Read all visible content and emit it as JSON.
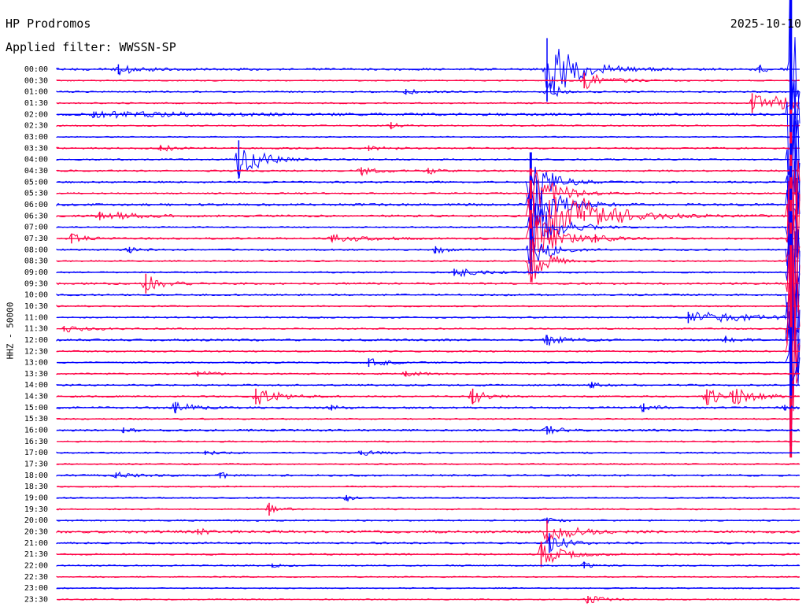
{
  "header": {
    "station": "HP Prodromos",
    "filter": "Applied filter: WWSSN-SP",
    "date": "2025-10-10",
    "channel": "HHZ - 50000"
  },
  "chart_data": {
    "type": "line",
    "subtype": "helicorder",
    "title": "HP Prodromos",
    "subtitle": "Applied filter: WWSSN-SP",
    "date": "2025-10-10",
    "ylabel": "HHZ - 50000",
    "grid": false,
    "colors": [
      "#0000ff",
      "#ff0044"
    ],
    "rows": [
      "00:00",
      "00:30",
      "01:00",
      "01:30",
      "02:00",
      "02:30",
      "03:00",
      "03:30",
      "04:00",
      "04:30",
      "05:00",
      "05:30",
      "06:00",
      "06:30",
      "07:00",
      "07:30",
      "08:00",
      "08:30",
      "09:00",
      "09:30",
      "10:00",
      "10:30",
      "11:00",
      "11:30",
      "12:00",
      "12:30",
      "13:00",
      "13:30",
      "14:00",
      "14:30",
      "15:00",
      "15:30",
      "16:00",
      "16:30",
      "17:00",
      "17:30",
      "18:00",
      "18:30",
      "19:00",
      "19:30",
      "20:00",
      "20:30",
      "21:00",
      "21:30",
      "22:00",
      "22:30",
      "23:00",
      "23:30"
    ],
    "noise": [
      1.4,
      0.8,
      1.0,
      0.9,
      1.6,
      0.9,
      0.7,
      1.1,
      1.0,
      1.1,
      1.2,
      1.0,
      1.5,
      1.3,
      0.9,
      1.2,
      1.1,
      0.9,
      1.0,
      1.2,
      1.1,
      0.9,
      1.0,
      0.9,
      1.3,
      1.0,
      1.0,
      0.9,
      1.1,
      1.0,
      1.2,
      0.9,
      1.3,
      0.9,
      1.0,
      0.9,
      1.2,
      0.9,
      0.9,
      0.9,
      1.0,
      1.6,
      1.1,
      1.0,
      0.9,
      0.8,
      0.8,
      0.8
    ],
    "events": [
      {
        "row": 0,
        "x": 0.083,
        "amp": 7,
        "dur": 0.03
      },
      {
        "row": 0,
        "x": 0.66,
        "amp": 44,
        "dur": 0.035
      },
      {
        "row": 0,
        "x": 0.946,
        "amp": 5,
        "dur": 0.008
      },
      {
        "row": 0,
        "x": 0.988,
        "amp": 160,
        "dur": 0.012,
        "fill": true
      },
      {
        "row": 1,
        "x": 0.71,
        "amp": 11,
        "dur": 0.03
      },
      {
        "row": 2,
        "x": 0.47,
        "amp": 4,
        "dur": 0.015
      },
      {
        "row": 2,
        "x": 0.66,
        "amp": 14,
        "dur": 0.015
      },
      {
        "row": 3,
        "x": 0.936,
        "amp": 14,
        "dur": 0.09
      },
      {
        "row": 4,
        "x": 0.05,
        "amp": 4,
        "dur": 0.12
      },
      {
        "row": 4,
        "x": 0.988,
        "amp": 165,
        "dur": 0.012,
        "fill": true
      },
      {
        "row": 5,
        "x": 0.45,
        "amp": 5,
        "dur": 0.01
      },
      {
        "row": 7,
        "x": 0.14,
        "amp": 4,
        "dur": 0.02
      },
      {
        "row": 7,
        "x": 0.42,
        "amp": 4,
        "dur": 0.02
      },
      {
        "row": 8,
        "x": 0.245,
        "amp": 27,
        "dur": 0.025
      },
      {
        "row": 8,
        "x": 0.988,
        "amp": 150,
        "dur": 0.014,
        "fill": true
      },
      {
        "row": 9,
        "x": 0.41,
        "amp": 5,
        "dur": 0.02
      },
      {
        "row": 9,
        "x": 0.5,
        "amp": 4,
        "dur": 0.015
      },
      {
        "row": 10,
        "x": 0.638,
        "amp": 42,
        "dur": 0.022,
        "fill": true
      },
      {
        "row": 10,
        "x": 0.988,
        "amp": 140,
        "dur": 0.025,
        "fill": true
      },
      {
        "row": 11,
        "x": 0.638,
        "amp": 35,
        "dur": 0.03,
        "fill": true
      },
      {
        "row": 12,
        "x": 0.638,
        "amp": 40,
        "dur": 0.03,
        "fill": true
      },
      {
        "row": 12,
        "x": 0.988,
        "amp": 160,
        "dur": 0.03,
        "fill": true
      },
      {
        "row": 13,
        "x": 0.058,
        "amp": 6,
        "dur": 0.04
      },
      {
        "row": 13,
        "x": 0.638,
        "amp": 50,
        "dur": 0.06,
        "fill": true
      },
      {
        "row": 13,
        "x": 0.71,
        "amp": 7,
        "dur": 0.025
      },
      {
        "row": 13,
        "x": 0.988,
        "amp": 150,
        "dur": 0.018,
        "fill": true
      },
      {
        "row": 14,
        "x": 0.638,
        "amp": 40,
        "dur": 0.03,
        "fill": true
      },
      {
        "row": 14,
        "x": 0.988,
        "amp": 160,
        "dur": 0.012,
        "fill": true
      },
      {
        "row": 15,
        "x": 0.02,
        "amp": 7,
        "dur": 0.015
      },
      {
        "row": 15,
        "x": 0.37,
        "amp": 4,
        "dur": 0.05
      },
      {
        "row": 15,
        "x": 0.725,
        "amp": 6,
        "dur": 0.015
      },
      {
        "row": 15,
        "x": 0.638,
        "amp": 40,
        "dur": 0.03,
        "fill": true
      },
      {
        "row": 15,
        "x": 0.988,
        "amp": 150,
        "dur": 0.012,
        "fill": true
      },
      {
        "row": 16,
        "x": 0.098,
        "amp": 4,
        "dur": 0.015
      },
      {
        "row": 16,
        "x": 0.51,
        "amp": 5,
        "dur": 0.015
      },
      {
        "row": 16,
        "x": 0.638,
        "amp": 30,
        "dur": 0.02,
        "fill": true
      },
      {
        "row": 16,
        "x": 0.988,
        "amp": 150,
        "dur": 0.012,
        "fill": true
      },
      {
        "row": 17,
        "x": 0.638,
        "amp": 30,
        "dur": 0.02
      },
      {
        "row": 17,
        "x": 0.988,
        "amp": 150,
        "dur": 0.012,
        "fill": true
      },
      {
        "row": 18,
        "x": 0.535,
        "amp": 5,
        "dur": 0.04
      },
      {
        "row": 18,
        "x": 0.988,
        "amp": 150,
        "dur": 0.012,
        "fill": true
      },
      {
        "row": 19,
        "x": 0.12,
        "amp": 14,
        "dur": 0.02
      },
      {
        "row": 19,
        "x": 0.988,
        "amp": 150,
        "dur": 0.012,
        "fill": true
      },
      {
        "row": 20,
        "x": 0.988,
        "amp": 150,
        "dur": 0.012,
        "fill": true
      },
      {
        "row": 21,
        "x": 0.988,
        "amp": 150,
        "dur": 0.012,
        "fill": true
      },
      {
        "row": 22,
        "x": 0.85,
        "amp": 8,
        "dur": 0.08
      },
      {
        "row": 22,
        "x": 0.988,
        "amp": 150,
        "dur": 0.012,
        "fill": true
      },
      {
        "row": 23,
        "x": 0.01,
        "amp": 4,
        "dur": 0.04
      },
      {
        "row": 23,
        "x": 0.988,
        "amp": 150,
        "dur": 0.012,
        "fill": true
      },
      {
        "row": 24,
        "x": 0.66,
        "amp": 7,
        "dur": 0.02
      },
      {
        "row": 24,
        "x": 0.9,
        "amp": 4,
        "dur": 0.015
      },
      {
        "row": 24,
        "x": 0.988,
        "amp": 150,
        "dur": 0.012,
        "fill": true
      },
      {
        "row": 25,
        "x": 0.988,
        "amp": 150,
        "dur": 0.012,
        "fill": true
      },
      {
        "row": 26,
        "x": 0.42,
        "amp": 6,
        "dur": 0.02
      },
      {
        "row": 26,
        "x": 0.988,
        "amp": 50,
        "dur": 0.008,
        "fill": true
      },
      {
        "row": 27,
        "x": 0.19,
        "amp": 4,
        "dur": 0.02
      },
      {
        "row": 27,
        "x": 0.47,
        "amp": 4,
        "dur": 0.02
      },
      {
        "row": 28,
        "x": 0.72,
        "amp": 4,
        "dur": 0.01
      },
      {
        "row": 29,
        "x": 0.268,
        "amp": 11,
        "dur": 0.03
      },
      {
        "row": 29,
        "x": 0.56,
        "amp": 11,
        "dur": 0.018
      },
      {
        "row": 29,
        "x": 0.875,
        "amp": 10,
        "dur": 0.03
      },
      {
        "row": 29,
        "x": 0.91,
        "amp": 8,
        "dur": 0.03
      },
      {
        "row": 30,
        "x": 0.16,
        "amp": 8,
        "dur": 0.02
      },
      {
        "row": 30,
        "x": 0.37,
        "amp": 4,
        "dur": 0.01
      },
      {
        "row": 30,
        "x": 0.79,
        "amp": 6,
        "dur": 0.015
      },
      {
        "row": 30,
        "x": 0.98,
        "amp": 4,
        "dur": 0.015
      },
      {
        "row": 32,
        "x": 0.09,
        "amp": 4,
        "dur": 0.01
      },
      {
        "row": 32,
        "x": 0.66,
        "amp": 6,
        "dur": 0.015
      },
      {
        "row": 34,
        "x": 0.2,
        "amp": 3,
        "dur": 0.015
      },
      {
        "row": 34,
        "x": 0.41,
        "amp": 3,
        "dur": 0.03
      },
      {
        "row": 36,
        "x": 0.08,
        "amp": 4,
        "dur": 0.02
      },
      {
        "row": 36,
        "x": 0.22,
        "amp": 4,
        "dur": 0.01
      },
      {
        "row": 38,
        "x": 0.39,
        "amp": 4,
        "dur": 0.008
      },
      {
        "row": 39,
        "x": 0.286,
        "amp": 9,
        "dur": 0.012
      },
      {
        "row": 40,
        "x": 0.66,
        "amp": 4,
        "dur": 0.015
      },
      {
        "row": 41,
        "x": 0.19,
        "amp": 4,
        "dur": 0.015
      },
      {
        "row": 41,
        "x": 0.66,
        "amp": 16,
        "dur": 0.03
      },
      {
        "row": 42,
        "x": 0.663,
        "amp": 14,
        "dur": 0.02
      },
      {
        "row": 43,
        "x": 0.652,
        "amp": 18,
        "dur": 0.025
      },
      {
        "row": 44,
        "x": 0.29,
        "amp": 3,
        "dur": 0.01
      },
      {
        "row": 44,
        "x": 0.71,
        "amp": 4,
        "dur": 0.01
      },
      {
        "row": 47,
        "x": 0.715,
        "amp": 5,
        "dur": 0.02
      }
    ]
  }
}
